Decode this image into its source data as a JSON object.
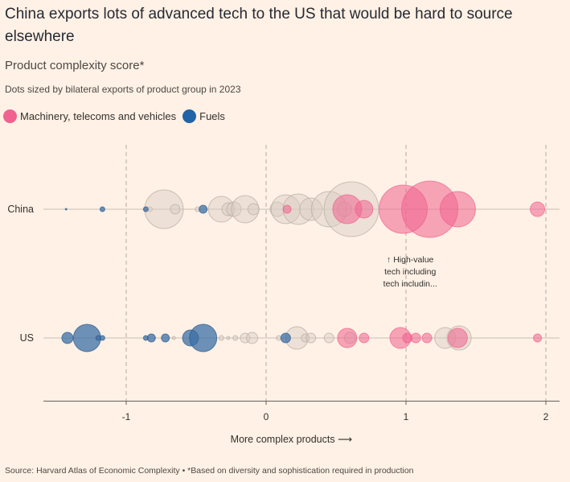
{
  "title": "China exports lots of advanced tech to the US that would be hard to source elsewhere",
  "subtitle": "Product complexity score*",
  "description": "Dots sized by bilateral exports of product group in 2023",
  "legend": [
    {
      "label": "Machinery, telecoms and vehicles",
      "color": "#f0628f"
    },
    {
      "label": "Fuels",
      "color": "#2063a8"
    }
  ],
  "source": "Source: Harvard Atlas of Economic Complexity • *Based on diversity and sophistication required in production",
  "colors": {
    "machinery": "#f0628f",
    "fuels": "#3c6fa6",
    "other": "#d8cdc3",
    "other_stroke": "#b7aca3",
    "background": "#fff1e5"
  },
  "chart_data": {
    "type": "scatter",
    "xlabel": "More complex products ⟶",
    "xlim": [
      -1.6,
      2.05
    ],
    "x_ticks": [
      -1,
      0,
      1,
      2
    ],
    "grid": "vertical dashed at ticks",
    "rows": [
      "China",
      "US"
    ],
    "annotation": {
      "text_lines": [
        "↑ High-value",
        "tech including",
        "tech includin..."
      ],
      "x": 1.03,
      "row": "China"
    },
    "series": [
      {
        "row": "China",
        "points": [
          {
            "x": -1.43,
            "size": 1,
            "cat": "fuels"
          },
          {
            "x": -1.17,
            "size": 3,
            "cat": "fuels"
          },
          {
            "x": -0.86,
            "size": 3,
            "cat": "fuels"
          },
          {
            "x": -0.83,
            "size": 3,
            "cat": "other"
          },
          {
            "x": -0.73,
            "size": 24,
            "cat": "other"
          },
          {
            "x": -0.65,
            "size": 6,
            "cat": "other"
          },
          {
            "x": -0.49,
            "size": 3,
            "cat": "other"
          },
          {
            "x": -0.45,
            "size": 5,
            "cat": "fuels"
          },
          {
            "x": -0.32,
            "size": 16,
            "cat": "other"
          },
          {
            "x": -0.27,
            "size": 8,
            "cat": "other"
          },
          {
            "x": -0.23,
            "size": 9,
            "cat": "other"
          },
          {
            "x": -0.15,
            "size": 17,
            "cat": "other"
          },
          {
            "x": -0.09,
            "size": 7,
            "cat": "other"
          },
          {
            "x": 0.08,
            "size": 9,
            "cat": "other"
          },
          {
            "x": 0.14,
            "size": 18,
            "cat": "other"
          },
          {
            "x": 0.15,
            "size": 5,
            "cat": "machinery"
          },
          {
            "x": 0.23,
            "size": 19,
            "cat": "other"
          },
          {
            "x": 0.32,
            "size": 14,
            "cat": "other"
          },
          {
            "x": 0.45,
            "size": 22,
            "cat": "other"
          },
          {
            "x": 0.56,
            "size": 9,
            "cat": "other"
          },
          {
            "x": 0.58,
            "size": 18,
            "cat": "machinery"
          },
          {
            "x": 0.61,
            "size": 34,
            "cat": "other"
          },
          {
            "x": 0.7,
            "size": 11,
            "cat": "machinery"
          },
          {
            "x": 0.98,
            "size": 30,
            "cat": "machinery"
          },
          {
            "x": 1.17,
            "size": 35,
            "cat": "machinery"
          },
          {
            "x": 1.37,
            "size": 22,
            "cat": "machinery"
          },
          {
            "x": 1.94,
            "size": 9,
            "cat": "machinery"
          }
        ]
      },
      {
        "row": "US",
        "points": [
          {
            "x": -1.42,
            "size": 7,
            "cat": "fuels"
          },
          {
            "x": -1.28,
            "size": 17,
            "cat": "fuels"
          },
          {
            "x": -1.2,
            "size": 3,
            "cat": "fuels"
          },
          {
            "x": -1.17,
            "size": 3,
            "cat": "fuels"
          },
          {
            "x": -0.86,
            "size": 3,
            "cat": "fuels"
          },
          {
            "x": -0.82,
            "size": 5,
            "cat": "fuels"
          },
          {
            "x": -0.72,
            "size": 5,
            "cat": "fuels"
          },
          {
            "x": -0.66,
            "size": 2,
            "cat": "other"
          },
          {
            "x": -0.54,
            "size": 10,
            "cat": "fuels"
          },
          {
            "x": -0.45,
            "size": 17,
            "cat": "fuels"
          },
          {
            "x": -0.32,
            "size": 3,
            "cat": "other"
          },
          {
            "x": -0.27,
            "size": 2,
            "cat": "other"
          },
          {
            "x": -0.22,
            "size": 3,
            "cat": "other"
          },
          {
            "x": -0.15,
            "size": 6,
            "cat": "other"
          },
          {
            "x": -0.1,
            "size": 7,
            "cat": "other"
          },
          {
            "x": 0.09,
            "size": 3,
            "cat": "other"
          },
          {
            "x": 0.14,
            "size": 6,
            "cat": "fuels"
          },
          {
            "x": 0.22,
            "size": 14,
            "cat": "other"
          },
          {
            "x": 0.28,
            "size": 5,
            "cat": "other"
          },
          {
            "x": 0.32,
            "size": 6,
            "cat": "other"
          },
          {
            "x": 0.45,
            "size": 6,
            "cat": "other"
          },
          {
            "x": 0.58,
            "size": 12,
            "cat": "machinery"
          },
          {
            "x": 0.6,
            "size": 7,
            "cat": "other"
          },
          {
            "x": 0.7,
            "size": 6,
            "cat": "machinery"
          },
          {
            "x": 0.96,
            "size": 13,
            "cat": "machinery"
          },
          {
            "x": 1.01,
            "size": 6,
            "cat": "machinery"
          },
          {
            "x": 1.07,
            "size": 6,
            "cat": "machinery"
          },
          {
            "x": 1.15,
            "size": 6,
            "cat": "machinery"
          },
          {
            "x": 1.28,
            "size": 13,
            "cat": "other"
          },
          {
            "x": 1.37,
            "size": 12,
            "cat": "machinery"
          },
          {
            "x": 1.38,
            "size": 15,
            "cat": "other"
          },
          {
            "x": 1.94,
            "size": 5,
            "cat": "machinery"
          }
        ]
      }
    ]
  }
}
